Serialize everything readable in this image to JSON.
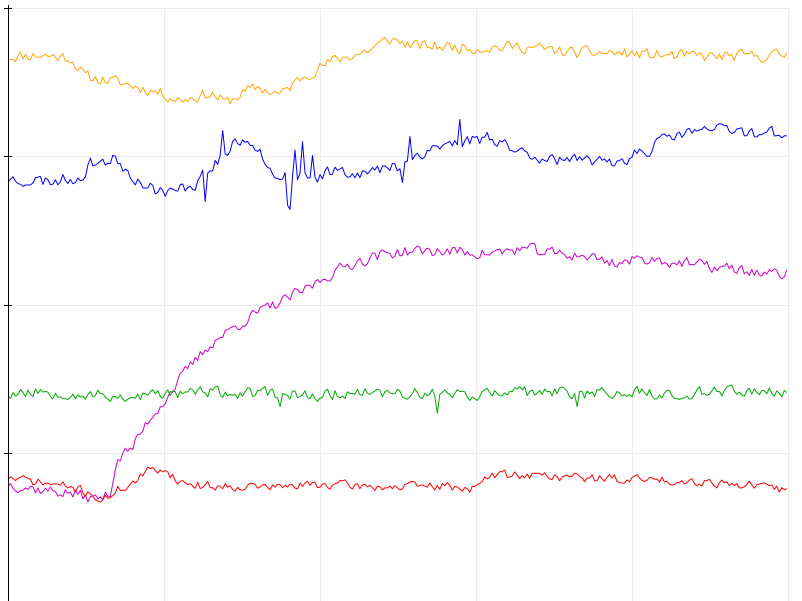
{
  "chart_data": {
    "type": "line",
    "title": "",
    "xlabel": "",
    "ylabel": "",
    "grid": true,
    "legend": "none",
    "xlim": [
      0,
      500
    ],
    "ylim": [
      0,
      100
    ],
    "x_gridlines": [
      0,
      100,
      200,
      300,
      400,
      500
    ],
    "y_ticks": [
      25,
      50,
      75,
      100
    ],
    "series": [
      {
        "color": "#ffa500",
        "style": "noisy",
        "points": [
          [
            0,
            91.8
          ],
          [
            20,
            92.1
          ],
          [
            40,
            91.6
          ],
          [
            50,
            88.3
          ],
          [
            65,
            87.8
          ],
          [
            80,
            86.9
          ],
          [
            95,
            85.9
          ],
          [
            110,
            84.5
          ],
          [
            130,
            85.6
          ],
          [
            140,
            84.0
          ],
          [
            150,
            85.6
          ],
          [
            160,
            86.6
          ],
          [
            175,
            85.4
          ],
          [
            190,
            88.7
          ],
          [
            200,
            90.0
          ],
          [
            210,
            91.3
          ],
          [
            230,
            92.7
          ],
          [
            245,
            94.8
          ],
          [
            260,
            93.6
          ],
          [
            280,
            93.5
          ],
          [
            300,
            93.3
          ],
          [
            330,
            93.5
          ],
          [
            360,
            92.5
          ],
          [
            390,
            92.4
          ],
          [
            420,
            92.0
          ],
          [
            450,
            91.8
          ],
          [
            480,
            91.9
          ],
          [
            500,
            92.1
          ]
        ],
        "noise": 0.9,
        "seed": 11
      },
      {
        "color": "#0000ff",
        "style": "noisy",
        "points": [
          [
            0,
            71.2
          ],
          [
            25,
            70.8
          ],
          [
            45,
            71.4
          ],
          [
            55,
            74.1
          ],
          [
            70,
            74.4
          ],
          [
            80,
            71.8
          ],
          [
            90,
            69.7
          ],
          [
            105,
            68.8
          ],
          [
            120,
            70.5
          ],
          [
            135,
            74.5
          ],
          [
            150,
            78.1
          ],
          [
            160,
            76.9
          ],
          [
            170,
            72.0
          ],
          [
            185,
            71.7
          ],
          [
            195,
            70.9
          ],
          [
            210,
            73.0
          ],
          [
            230,
            72.1
          ],
          [
            250,
            73.4
          ],
          [
            270,
            76.3
          ],
          [
            290,
            77.4
          ],
          [
            310,
            78.3
          ],
          [
            330,
            75.6
          ],
          [
            350,
            74.6
          ],
          [
            370,
            73.8
          ],
          [
            390,
            74.1
          ],
          [
            410,
            76.2
          ],
          [
            430,
            78.8
          ],
          [
            450,
            79.5
          ],
          [
            470,
            79.2
          ],
          [
            490,
            78.9
          ],
          [
            500,
            79.2
          ]
        ],
        "noise": 1.0,
        "seed": 23,
        "spike_rate": 0.05,
        "spike_size": 3.8,
        "spike_range": [
          120,
          300
        ]
      },
      {
        "color": "#cc00cc",
        "style": "noisy",
        "points": [
          [
            0,
            19.8
          ],
          [
            20,
            18.8
          ],
          [
            40,
            18.2
          ],
          [
            55,
            17.2
          ],
          [
            65,
            17.8
          ],
          [
            70,
            24.0
          ],
          [
            80,
            25.9
          ],
          [
            90,
            30.5
          ],
          [
            100,
            33.8
          ],
          [
            115,
            39.0
          ],
          [
            130,
            43.4
          ],
          [
            145,
            46.2
          ],
          [
            160,
            48.6
          ],
          [
            175,
            50.4
          ],
          [
            190,
            52.4
          ],
          [
            205,
            54.9
          ],
          [
            220,
            56.9
          ],
          [
            235,
            58.1
          ],
          [
            250,
            58.9
          ],
          [
            270,
            59.0
          ],
          [
            290,
            58.9
          ],
          [
            310,
            58.6
          ],
          [
            330,
            59.4
          ],
          [
            350,
            58.6
          ],
          [
            370,
            58.2
          ],
          [
            390,
            57.0
          ],
          [
            410,
            57.8
          ],
          [
            430,
            57.0
          ],
          [
            450,
            56.4
          ],
          [
            470,
            55.8
          ],
          [
            490,
            55.0
          ],
          [
            500,
            55.3
          ]
        ],
        "noise": 0.9,
        "seed": 37
      },
      {
        "color": "#00aa00",
        "style": "noisy",
        "points": [
          [
            0,
            35.0
          ],
          [
            25,
            35.4
          ],
          [
            50,
            34.8
          ],
          [
            75,
            34.4
          ],
          [
            100,
            34.9
          ],
          [
            125,
            35.3
          ],
          [
            150,
            34.9
          ],
          [
            175,
            35.0
          ],
          [
            200,
            34.7
          ],
          [
            225,
            35.4
          ],
          [
            250,
            34.9
          ],
          [
            275,
            35.1
          ],
          [
            300,
            34.8
          ],
          [
            325,
            35.1
          ],
          [
            350,
            35.2
          ],
          [
            375,
            34.9
          ],
          [
            400,
            35.3
          ],
          [
            425,
            35.0
          ],
          [
            450,
            35.1
          ],
          [
            475,
            35.4
          ],
          [
            500,
            35.3
          ]
        ],
        "noise": 0.9,
        "seed": 53,
        "spike_rate": 0.012,
        "spike_size": -3.5
      },
      {
        "color": "#ff0000",
        "style": "noisy",
        "points": [
          [
            0,
            20.8
          ],
          [
            20,
            20.0
          ],
          [
            40,
            19.2
          ],
          [
            55,
            18.0
          ],
          [
            60,
            16.5
          ],
          [
            70,
            18.8
          ],
          [
            80,
            19.8
          ],
          [
            90,
            21.9
          ],
          [
            100,
            22.4
          ],
          [
            110,
            20.1
          ],
          [
            125,
            19.4
          ],
          [
            150,
            19.4
          ],
          [
            175,
            19.2
          ],
          [
            200,
            19.7
          ],
          [
            225,
            19.4
          ],
          [
            250,
            19.2
          ],
          [
            275,
            19.4
          ],
          [
            300,
            19.0
          ],
          [
            310,
            21.3
          ],
          [
            330,
            21.3
          ],
          [
            360,
            20.9
          ],
          [
            390,
            20.6
          ],
          [
            420,
            20.4
          ],
          [
            450,
            20.1
          ],
          [
            480,
            19.4
          ],
          [
            500,
            18.6
          ]
        ],
        "noise": 0.7,
        "seed": 71
      }
    ]
  }
}
